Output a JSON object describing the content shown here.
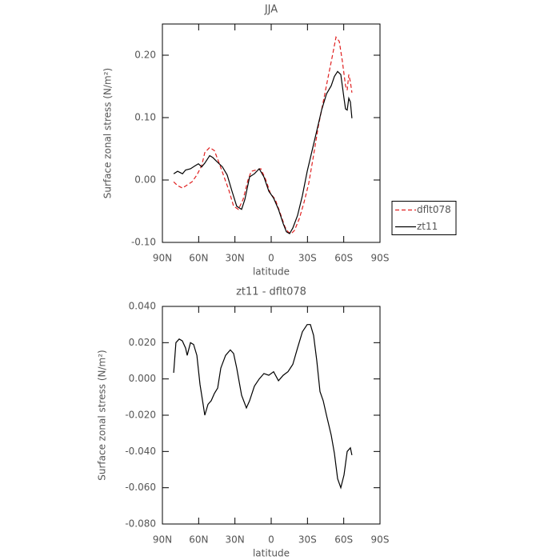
{
  "chart_data": [
    {
      "type": "line",
      "title": "JJA",
      "xlabel": "latitude",
      "ylabel": "Surface zonal stress (N/m²)",
      "xlim": [
        90,
        -90
      ],
      "xticks": [
        {
          "value": 90,
          "label": "90N"
        },
        {
          "value": 60,
          "label": "60N"
        },
        {
          "value": 30,
          "label": "30N"
        },
        0,
        {
          "value": -30,
          "label": "30S"
        },
        {
          "value": -60,
          "label": "60S"
        },
        {
          "value": -90,
          "label": "90S"
        }
      ],
      "ylim": [
        -0.1,
        0.25
      ],
      "yticks": [
        {
          "value": -0.1,
          "label": "-0.10"
        },
        {
          "value": 0,
          "label": "0.00"
        },
        {
          "value": 0.1,
          "label": "0.10"
        },
        {
          "value": 0.2,
          "label": "0.20"
        }
      ],
      "legend": "right",
      "series": [
        {
          "name": "dflt078",
          "color": "#e02020",
          "dashed": true,
          "x": [
            80.7,
            77.4,
            73.4,
            69.5,
            65.5,
            61.5,
            57.5,
            54.9,
            50.9,
            47.0,
            43.0,
            39.0,
            35.1,
            31.1,
            27.1,
            23.2,
            19.2,
            16.5,
            12.6,
            8.6,
            4.6,
            0.7,
            -3.3,
            -7.3,
            -11.3,
            -13.9,
            -16.5,
            -19.2,
            -23.2,
            -27.1,
            -31.1,
            -35.1,
            -39.0,
            -43.0,
            -47.0,
            -51.0,
            -53.6,
            -56.3,
            -58.9,
            -61.5,
            -62.9,
            -64.2,
            -65.5,
            -66.8
          ],
          "values": [
            -0.003,
            -0.009,
            -0.013,
            -0.008,
            -0.003,
            0.008,
            0.023,
            0.044,
            0.052,
            0.047,
            0.027,
            0.005,
            -0.016,
            -0.042,
            -0.047,
            -0.031,
            0,
            0.014,
            0.016,
            0.018,
            0.001,
            -0.021,
            -0.031,
            -0.052,
            -0.075,
            -0.083,
            -0.086,
            -0.081,
            -0.062,
            -0.036,
            -0.005,
            0.04,
            0.086,
            0.125,
            0.164,
            0.203,
            0.229,
            0.222,
            0.19,
            0.151,
            0.144,
            0.169,
            0.157,
            0.14
          ]
        },
        {
          "name": "zt11",
          "color": "#000000",
          "dashed": false,
          "x": [
            80.7,
            77.4,
            73.4,
            70.8,
            66.8,
            62.9,
            60.2,
            57.5,
            54.9,
            50.9,
            48.3,
            45.7,
            40.4,
            36.4,
            32.4,
            28.5,
            24.5,
            21.8,
            17.9,
            13.9,
            9.9,
            6.0,
            2.0,
            -2.0,
            -6.0,
            -9.9,
            -12.6,
            -15.2,
            -17.9,
            -21.8,
            -25.8,
            -29.8,
            -33.8,
            -37.7,
            -41.7,
            -45.7,
            -49.6,
            -52.3,
            -54.9,
            -57.6,
            -60.2,
            -61.5,
            -62.9,
            -64.2,
            -65.5,
            -66.8
          ],
          "values": [
            0.01,
            0.014,
            0.01,
            0.016,
            0.018,
            0.023,
            0.026,
            0.021,
            0.027,
            0.039,
            0.036,
            0.031,
            0.021,
            0.008,
            -0.018,
            -0.042,
            -0.047,
            -0.031,
            0.005,
            0.01,
            0.018,
            0.005,
            -0.018,
            -0.029,
            -0.047,
            -0.07,
            -0.083,
            -0.086,
            -0.077,
            -0.057,
            -0.025,
            0.014,
            0.047,
            0.079,
            0.112,
            0.138,
            0.151,
            0.166,
            0.174,
            0.169,
            0.131,
            0.114,
            0.112,
            0.131,
            0.125,
            0.099
          ]
        }
      ]
    },
    {
      "type": "line",
      "title": "zt11 - dflt078",
      "xlabel": "latitude",
      "ylabel": "Surface zonal stress (N/m²)",
      "xlim": [
        90,
        -90
      ],
      "xticks": [
        {
          "value": 90,
          "label": "90N"
        },
        {
          "value": 60,
          "label": "60N"
        },
        {
          "value": 30,
          "label": "30N"
        },
        0,
        {
          "value": -30,
          "label": "30S"
        },
        {
          "value": -60,
          "label": "60S"
        },
        {
          "value": -90,
          "label": "90S"
        }
      ],
      "ylim": [
        -0.08,
        0.04
      ],
      "yticks": [
        {
          "value": -0.08,
          "label": "-0.080"
        },
        {
          "value": -0.06,
          "label": "-0.060"
        },
        {
          "value": -0.04,
          "label": "-0.040"
        },
        {
          "value": -0.02,
          "label": "-0.020"
        },
        {
          "value": 0,
          "label": "0.000"
        },
        {
          "value": 0.02,
          "label": "0.020"
        },
        {
          "value": 0.04,
          "label": "0.040"
        }
      ],
      "series": [
        {
          "color": "#000000",
          "dashed": false,
          "x": [
            80.7,
            78.8,
            76.1,
            73.5,
            70.8,
            69.5,
            66.8,
            64.2,
            61.5,
            58.9,
            56.3,
            54.9,
            52.3,
            49.6,
            47.0,
            44.3,
            41.7,
            37.7,
            33.8,
            31.1,
            28.5,
            24.5,
            20.5,
            17.9,
            13.9,
            9.9,
            6.0,
            2.0,
            -2.0,
            -6.0,
            -9.9,
            -13.9,
            -17.9,
            -21.8,
            -25.8,
            -29.8,
            -32.4,
            -35.1,
            -37.7,
            -40.4,
            -43.0,
            -45.7,
            -49.6,
            -52.3,
            -54.9,
            -57.6,
            -60.2,
            -62.9,
            -65.5,
            -66.8
          ],
          "values": [
            0.0034,
            0.02,
            0.022,
            0.021,
            0.017,
            0.013,
            0.02,
            0.019,
            0.013,
            -0.003,
            -0.014,
            -0.02,
            -0.014,
            -0.012,
            -0.008,
            -0.005,
            0.006,
            0.013,
            0.016,
            0.014,
            0.006,
            -0.009,
            -0.016,
            -0.012,
            -0.004,
            0,
            0.003,
            0.002,
            0.004,
            -0.001,
            0.002,
            0.004,
            0.008,
            0.017,
            0.026,
            0.03,
            0.03,
            0.024,
            0.01,
            -0.007,
            -0.012,
            -0.02,
            -0.031,
            -0.041,
            -0.055,
            -0.06,
            -0.053,
            -0.04,
            -0.038,
            -0.042
          ]
        }
      ]
    }
  ]
}
